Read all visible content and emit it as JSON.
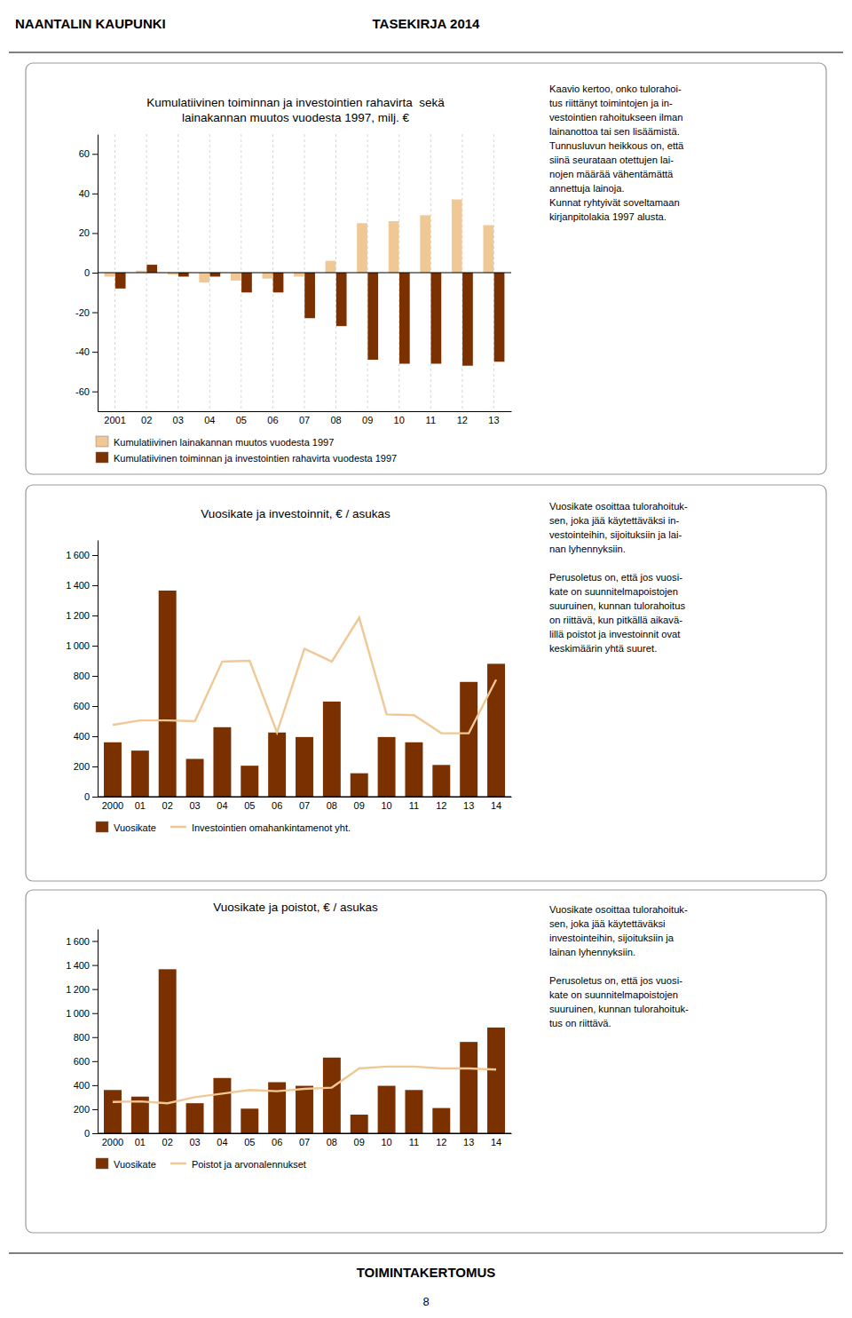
{
  "header": [
    "NAANTALIN KAUPUNKI",
    "TASEKIRJA 2014"
  ],
  "footer": [
    "TOIMINTAKERTOMUS",
    "8"
  ],
  "chart_data": [
    {
      "type": "bar",
      "title": "Kumulatiivinen toiminnan ja investointien rahavirta  sekä",
      "subtitle": "lainakannan muutos vuodesta 1997, milj. €",
      "categories": [
        "2001",
        "02",
        "03",
        "04",
        "05",
        "06",
        "07",
        "08",
        "09",
        "10",
        "11",
        "12",
        "13"
      ],
      "series": [
        {
          "name": "Kumulatiivinen lainakannan muutos vuodesta 1997",
          "color": "#F0C896",
          "values": [
            -2,
            1,
            -1,
            -5,
            -4,
            -3,
            -2,
            6,
            25,
            26,
            29,
            37,
            24
          ]
        },
        {
          "name": "Kumulatiivinen toiminnan ja investointien rahavirta vuodesta 1997",
          "color": "#7B3000",
          "values": [
            -8,
            4,
            -2,
            -2,
            -10,
            -10,
            -23,
            -27,
            -44,
            -46,
            -46,
            -47,
            -45
          ]
        }
      ],
      "ylim": [
        -70,
        70
      ],
      "yticks": [
        -60,
        -40,
        -20,
        0,
        20,
        40,
        60
      ],
      "grid": true,
      "legend": "bottom",
      "annotations": [
        [
          "Kaavio kertoo, onko tulorahoi-",
          "tus riittänyt toimintojen ja in-",
          "vestointien rahoitukseen ilman",
          "lainanottoa tai sen lisäämistä.",
          "Tunnusluvun heikkous on, että",
          "siinä seurataan otettujen lai-",
          "nojen määrää vähentämättä",
          "annettuja lainoja.",
          "Kunnat ryhtyivät soveltamaan",
          "kirjanpitolakia 1997 alusta."
        ]
      ]
    },
    {
      "type": "bar",
      "title": "Vuosikate ja investoinnit, € / asukas",
      "categories": [
        "2000",
        "01",
        "02",
        "03",
        "04",
        "05",
        "06",
        "07",
        "08",
        "09",
        "10",
        "11",
        "12",
        "13",
        "14"
      ],
      "series": [
        {
          "name": "Vuosikate",
          "type": "bar",
          "color": "#7B3000",
          "values": [
            360,
            305,
            1365,
            250,
            460,
            205,
            425,
            395,
            630,
            155,
            395,
            360,
            210,
            760,
            880
          ]
        },
        {
          "name": "Investointien omahankintamenot yht.",
          "type": "line",
          "color": "#F0C896",
          "values": [
            475,
            505,
            505,
            500,
            895,
            900,
            425,
            980,
            895,
            1185,
            545,
            540,
            420,
            420,
            775
          ]
        }
      ],
      "ylim": [
        0,
        1700
      ],
      "yticks": [
        0,
        200,
        400,
        600,
        800,
        {
          "value": 1000,
          "label": "1 000"
        },
        {
          "value": 1200,
          "label": "1 200"
        },
        {
          "value": 1400,
          "label": "1 400"
        },
        {
          "value": 1600,
          "label": "1 600"
        }
      ],
      "grid": false,
      "legend": "bottom",
      "annotations": [
        [
          "Vuosikate osoittaa tulorahoituk-",
          "sen, joka jää käytettäväksi in-",
          "vestointeihin, sijoituksiin ja lai-",
          "nan lyhennyksiin."
        ],
        [
          "Perusoletus on, että jos vuosi-",
          "kate on suunnitelmapoistojen",
          "suuruinen, kunnan tulorahoitus",
          "on riittävä, kun pitkällä aikavä-",
          "lillä poistot ja investoinnit ovat",
          "keskimäärin yhtä suuret."
        ]
      ]
    },
    {
      "type": "bar",
      "title": "Vuosikate ja poistot, € / asukas",
      "categories": [
        "2000",
        "01",
        "02",
        "03",
        "04",
        "05",
        "06",
        "07",
        "08",
        "09",
        "10",
        "11",
        "12",
        "13",
        "14"
      ],
      "series": [
        {
          "name": "Vuosikate",
          "type": "bar",
          "color": "#7B3000",
          "values": [
            360,
            305,
            1365,
            250,
            460,
            205,
            425,
            395,
            630,
            155,
            395,
            360,
            210,
            760,
            880
          ]
        },
        {
          "name": "Poistot ja arvonalennukset",
          "type": "line",
          "color": "#F0C896",
          "values": [
            260,
            265,
            250,
            300,
            330,
            360,
            350,
            370,
            380,
            540,
            555,
            555,
            540,
            540,
            530
          ]
        }
      ],
      "ylim": [
        0,
        1700
      ],
      "yticks": [
        0,
        200,
        400,
        600,
        800,
        {
          "value": 1000,
          "label": "1 000"
        },
        {
          "value": 1200,
          "label": "1 200"
        },
        {
          "value": 1400,
          "label": "1 400"
        },
        {
          "value": 1600,
          "label": "1 600"
        }
      ],
      "grid": false,
      "legend": "bottom",
      "annotations": [
        [
          "Vuosikate osoittaa tulorahoituk-",
          "sen, joka jää käytettäväksi",
          "investointeihin, sijoituksiin ja",
          "lainan lyhennyksiin."
        ],
        [
          "Perusoletus on, että jos vuosi-",
          "kate on suunnitelmapoistojen",
          "suuruinen, kunnan tulorahoituk-",
          "tus on riittävä."
        ]
      ]
    }
  ]
}
